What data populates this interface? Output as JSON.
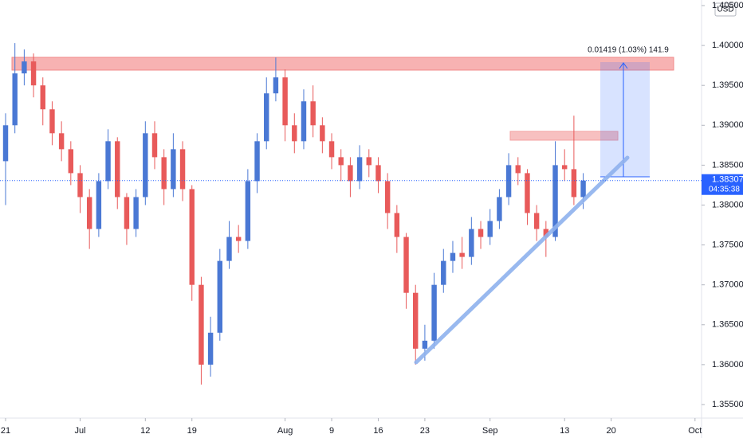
{
  "chart_data": {
    "type": "candlestick",
    "currency": "USD",
    "measure_label": "0.01419 (1.03%) 141.9",
    "last_price": 1.38307,
    "countdown": "04:35:38",
    "up_color": "#4a78d4",
    "down_color": "#e85a5a",
    "xlim": [
      -0.6,
      74.7
    ],
    "ylim": [
      1.3533,
      1.4057
    ],
    "xticks": [
      {
        "value": 0,
        "label": "21"
      },
      {
        "value": 8,
        "label": "Jul"
      },
      {
        "value": 15,
        "label": "12"
      },
      {
        "value": 20,
        "label": "19"
      },
      {
        "value": 30,
        "label": "Aug"
      },
      {
        "value": 35,
        "label": "9"
      },
      {
        "value": 40,
        "label": "16"
      },
      {
        "value": 45,
        "label": "23"
      },
      {
        "value": 52,
        "label": "Sep"
      },
      {
        "value": 60,
        "label": "13"
      },
      {
        "value": 65,
        "label": "20"
      },
      {
        "value": 74,
        "label": "Oct"
      }
    ],
    "yticks": [
      {
        "value": 1.355,
        "label": "1.35500"
      },
      {
        "value": 1.36,
        "label": "1.36000"
      },
      {
        "value": 1.365,
        "label": "1.36500"
      },
      {
        "value": 1.37,
        "label": "1.37000"
      },
      {
        "value": 1.375,
        "label": "1.37500"
      },
      {
        "value": 1.38,
        "label": "1.38000"
      },
      {
        "value": 1.385,
        "label": "1.38500"
      },
      {
        "value": 1.39,
        "label": "1.39000"
      },
      {
        "value": 1.395,
        "label": "1.39500"
      },
      {
        "value": 1.4,
        "label": "1.40000"
      },
      {
        "value": 1.405,
        "label": "1.40500"
      }
    ],
    "x": [
      0,
      1,
      2,
      3,
      4,
      5,
      6,
      7,
      8,
      9,
      10,
      11,
      12,
      13,
      14,
      15,
      16,
      17,
      18,
      19,
      20,
      21,
      22,
      23,
      24,
      25,
      26,
      27,
      28,
      29,
      30,
      31,
      32,
      33,
      34,
      35,
      36,
      37,
      38,
      39,
      40,
      41,
      42,
      43,
      44,
      45,
      46,
      47,
      48,
      49,
      50,
      51,
      52,
      53,
      54,
      55,
      56,
      57,
      58,
      59,
      60,
      61,
      62
    ],
    "open": [
      1.3855,
      1.39,
      1.3965,
      1.398,
      1.395,
      1.392,
      1.389,
      1.387,
      1.384,
      1.381,
      1.377,
      1.383,
      1.388,
      1.381,
      1.377,
      1.381,
      1.389,
      1.386,
      1.382,
      1.387,
      1.382,
      1.37,
      1.36,
      1.364,
      1.373,
      1.376,
      1.3755,
      1.383,
      1.388,
      1.394,
      1.396,
      1.39,
      1.388,
      1.393,
      1.39,
      1.388,
      1.386,
      1.385,
      1.383,
      1.386,
      1.385,
      1.383,
      1.379,
      1.376,
      1.369,
      1.362,
      1.363,
      1.37,
      1.373,
      1.374,
      1.3735,
      1.377,
      1.376,
      1.378,
      1.381,
      1.385,
      1.384,
      1.379,
      1.377,
      1.376,
      1.385,
      1.3845,
      1.381
    ],
    "high": [
      1.3915,
      1.4003,
      1.3995,
      1.399,
      1.396,
      1.393,
      1.3905,
      1.388,
      1.385,
      1.382,
      1.384,
      1.3895,
      1.3885,
      1.3815,
      1.382,
      1.3905,
      1.3905,
      1.387,
      1.389,
      1.388,
      1.3825,
      1.371,
      1.366,
      1.3745,
      1.378,
      1.3775,
      1.3845,
      1.389,
      1.396,
      1.3985,
      1.397,
      1.3915,
      1.3945,
      1.395,
      1.391,
      1.389,
      1.387,
      1.386,
      1.3875,
      1.387,
      1.386,
      1.384,
      1.38,
      1.3765,
      1.37,
      1.365,
      1.3715,
      1.3745,
      1.3755,
      1.376,
      1.3785,
      1.378,
      1.3795,
      1.382,
      1.3865,
      1.386,
      1.3845,
      1.38,
      1.378,
      1.388,
      1.387,
      1.3912,
      1.384
    ],
    "low": [
      1.38,
      1.389,
      1.395,
      1.3935,
      1.39,
      1.3875,
      1.3855,
      1.3825,
      1.379,
      1.3745,
      1.376,
      1.382,
      1.3795,
      1.375,
      1.376,
      1.38,
      1.3845,
      1.38,
      1.381,
      1.3805,
      1.368,
      1.3575,
      1.3585,
      1.363,
      1.372,
      1.374,
      1.3745,
      1.3815,
      1.387,
      1.393,
      1.388,
      1.3865,
      1.387,
      1.3885,
      1.3865,
      1.3845,
      1.383,
      1.381,
      1.382,
      1.3835,
      1.3815,
      1.377,
      1.374,
      1.367,
      1.36,
      1.3605,
      1.362,
      1.369,
      1.3715,
      1.372,
      1.3725,
      1.3745,
      1.375,
      1.377,
      1.38,
      1.3825,
      1.3775,
      1.3755,
      1.3735,
      1.3755,
      1.383,
      1.38,
      1.3795
    ],
    "close": [
      1.39,
      1.3965,
      1.398,
      1.395,
      1.392,
      1.389,
      1.387,
      1.384,
      1.381,
      1.377,
      1.383,
      1.388,
      1.381,
      1.377,
      1.381,
      1.389,
      1.386,
      1.382,
      1.387,
      1.382,
      1.37,
      1.36,
      1.364,
      1.373,
      1.376,
      1.3755,
      1.383,
      1.388,
      1.394,
      1.396,
      1.39,
      1.388,
      1.393,
      1.39,
      1.388,
      1.386,
      1.385,
      1.383,
      1.386,
      1.385,
      1.383,
      1.379,
      1.376,
      1.369,
      1.362,
      1.363,
      1.37,
      1.373,
      1.374,
      1.3735,
      1.377,
      1.376,
      1.378,
      1.381,
      1.385,
      1.384,
      1.379,
      1.377,
      1.376,
      1.385,
      1.3845,
      1.381,
      1.38307
    ]
  }
}
